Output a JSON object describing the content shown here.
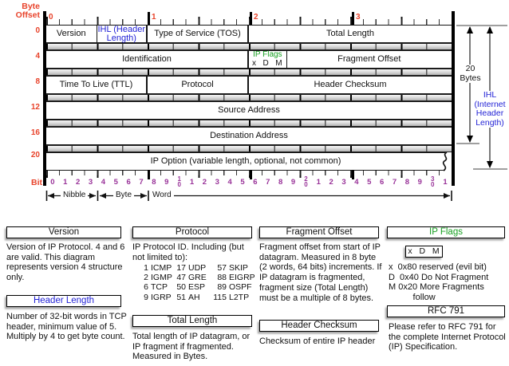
{
  "colors": {
    "red": "#e8442c",
    "purple": "#993399",
    "blue": "#2323d6",
    "green": "#17a021"
  },
  "diagram": {
    "byte_offset_label": "Byte\nOffset",
    "top_ruler_numbers": [
      "0",
      "1",
      "2",
      "3"
    ],
    "rows": {
      "r0": {
        "offset": "0",
        "version": "Version",
        "ihl": "IHL (Header Length)",
        "tos": "Type of Service (TOS)",
        "total_length": "Total Length"
      },
      "r4": {
        "offset": "4",
        "identification": "Identification",
        "ip_flags": "IP Flags",
        "ip_flags_bits": "x  D  M",
        "fragment_offset": "Fragment Offset"
      },
      "r8": {
        "offset": "8",
        "ttl": "Time To Live (TTL)",
        "protocol": "Protocol",
        "header_checksum": "Header Checksum"
      },
      "r12": {
        "offset": "12",
        "source": "Source Address"
      },
      "r16": {
        "offset": "16",
        "destination": "Destination Address"
      },
      "r20": {
        "offset": "20",
        "ip_option": "IP Option (variable length, optional, not common)"
      }
    },
    "bit_label": "Bit",
    "bit_numbers": [
      "0",
      "1",
      "2",
      "3",
      "4",
      "5",
      "6",
      "7",
      "8",
      "9",
      "10",
      "1",
      "2",
      "3",
      "4",
      "5",
      "6",
      "7",
      "8",
      "9",
      "20",
      "1",
      "2",
      "3",
      "4",
      "5",
      "6",
      "7",
      "8",
      "9",
      "30",
      "1"
    ],
    "scale": {
      "nibble": "Nibble",
      "byte": "Byte",
      "word": "Word"
    },
    "right_annotation": {
      "bytes_label": "20\nBytes",
      "ihl_label": "IHL\n(Internet\nHeader\nLength)"
    }
  },
  "panels": {
    "version": {
      "title": "Version",
      "body": "Version of IP Protocol.  4 and 6 are valid.  This diagram represents version 4 structure only."
    },
    "header_length": {
      "title": "Header Length",
      "body": "Number of 32-bit words in TCP header, minimum value of 5.  Multiply by 4 to get byte count."
    },
    "protocol": {
      "title": "Protocol",
      "intro": "IP Protocol ID.  Including (but not limited to):",
      "table": [
        [
          [
            "1",
            "ICMP"
          ],
          [
            "2",
            "IGMP"
          ],
          [
            "6",
            "TCP"
          ],
          [
            "9",
            "IGRP"
          ]
        ],
        [
          [
            "17",
            "UDP"
          ],
          [
            "47",
            "GRE"
          ],
          [
            "50",
            "ESP"
          ],
          [
            "51",
            "AH"
          ]
        ],
        [
          [
            "57",
            "SKIP"
          ],
          [
            "88",
            "EIGRP"
          ],
          [
            "89",
            "OSPF"
          ],
          [
            "115",
            "L2TP"
          ]
        ]
      ]
    },
    "total_length": {
      "title": "Total Length",
      "body": "Total length of IP datagram, or IP fragment if fragmented.  Measured in Bytes."
    },
    "fragment_offset": {
      "title": "Fragment Offset",
      "body": "Fragment offset from start of IP datagram.  Measured in 8 byte (2 words, 64 bits) increments.  If IP datagram is fragmented, fragment size (Total Length) must be a multiple of 8 bytes."
    },
    "header_checksum": {
      "title": "Header Checksum",
      "body": "Checksum of entire IP header"
    },
    "ip_flags": {
      "title": "IP Flags",
      "flags_box": "x  D  M",
      "flags_list": "x  0x80 reserved (evil bit)\nD  0x40 Do Not Fragment\nM 0x20 More Fragments\n          follow"
    },
    "rfc": {
      "title": "RFC 791",
      "body": "Please refer to RFC 791 for the complete Internet Protocol (IP) Specification."
    }
  }
}
